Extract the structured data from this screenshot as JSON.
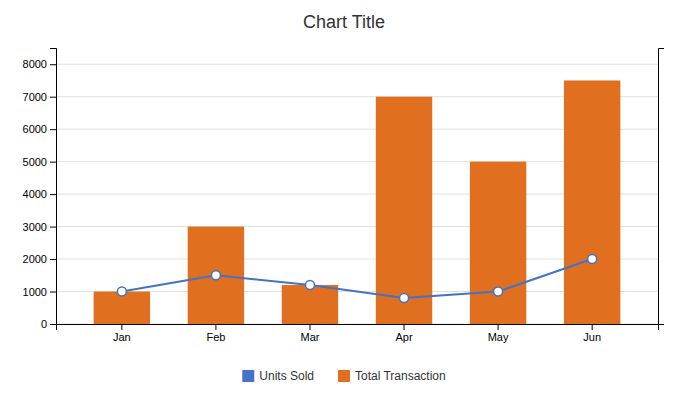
{
  "chart_data": {
    "type": "bar",
    "title": "Chart Title",
    "categories": [
      "Jan",
      "Feb",
      "Mar",
      "Apr",
      "May",
      "Jun"
    ],
    "series": [
      {
        "name": "Units Sold",
        "type": "line",
        "color": "#4472C4",
        "marker": "circle",
        "axis": "y2",
        "values": [
          10,
          15,
          12,
          8,
          10,
          20
        ]
      },
      {
        "name": "Total Transaction",
        "type": "bar",
        "color": "#E07020",
        "values": [
          1000,
          3000,
          1200,
          7000,
          5000,
          7500
        ]
      }
    ],
    "ylim": [
      0,
      8500
    ],
    "yticks": [
      0,
      1000,
      2000,
      3000,
      4000,
      5000,
      6000,
      7000,
      8000
    ],
    "y2lim": [
      0,
      85
    ],
    "y2ticks": [],
    "grid": true,
    "legend": "bottom"
  }
}
